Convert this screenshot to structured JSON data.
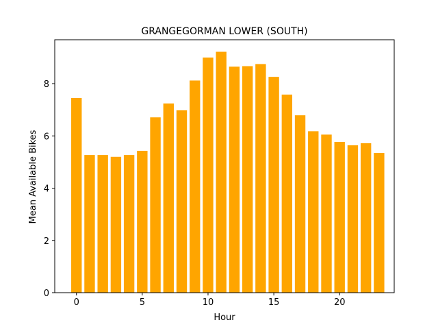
{
  "chart_data": {
    "type": "bar",
    "title": "GRANGEGORMAN LOWER (SOUTH)",
    "xlabel": "Hour",
    "ylabel": "Mean Available Bikes",
    "categories": [
      0,
      1,
      2,
      3,
      4,
      5,
      6,
      7,
      8,
      9,
      10,
      11,
      12,
      13,
      14,
      15,
      16,
      17,
      18,
      19,
      20,
      21,
      22,
      23
    ],
    "values": [
      7.45,
      5.27,
      5.27,
      5.2,
      5.27,
      5.43,
      6.71,
      7.24,
      6.98,
      8.12,
      9.0,
      9.22,
      8.65,
      8.67,
      8.75,
      8.26,
      7.58,
      6.79,
      6.18,
      6.05,
      5.77,
      5.64,
      5.72,
      5.35
    ],
    "xlim": [
      -1.65,
      24.15
    ],
    "ylim": [
      0,
      9.68
    ],
    "xticks": [
      0,
      5,
      10,
      15,
      20
    ],
    "yticks": [
      0,
      2,
      4,
      6,
      8
    ],
    "bar_color": "#ffa500",
    "grid": false,
    "legend": "none"
  }
}
